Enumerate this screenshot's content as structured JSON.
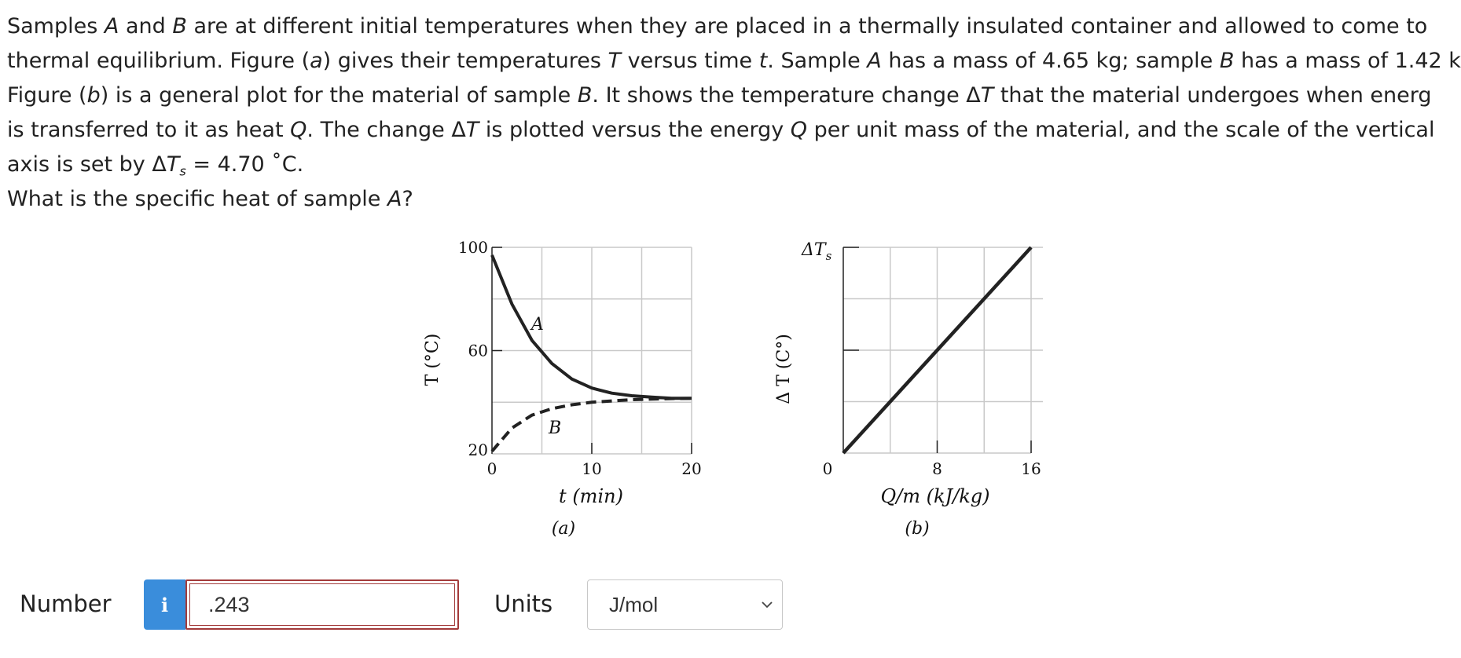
{
  "problem": {
    "line1": {
      "a": "Samples ",
      "b": "A",
      "c": " and ",
      "d": "B",
      "e": " are at different initial temperatures when they are placed in a thermally insulated container and allowed to come to"
    },
    "line2": {
      "a": "thermal equilibrium. Figure (",
      "b": "a",
      "c": ") gives their temperatures ",
      "d": "T",
      "e": " versus time ",
      "f": "t",
      "g": ". Sample ",
      "h": "A",
      "i": " has a mass of 4.65 kg; sample ",
      "j": "B",
      "k": " has a mass of 1.42 k"
    },
    "line3": {
      "a": "Figure (",
      "b": "b",
      "c": ") is a general plot for the material of sample ",
      "d": "B",
      "e": ". It shows the temperature change Δ",
      "f": "T",
      "g": " that the material undergoes when energ"
    },
    "line4": {
      "a": "is transferred to it as heat ",
      "b": "Q",
      "c": ". The change Δ",
      "d": "T",
      "e": " is plotted versus the energy ",
      "f": "Q",
      "g": " per unit mass of the material, and the scale of the vertical"
    },
    "line5": {
      "a": "axis is set by Δ",
      "b": "T",
      "c": "s",
      "d": " = 4.70 ˚C."
    },
    "question": {
      "a": "What is the specific heat of sample ",
      "b": "A",
      "c": "?"
    }
  },
  "figure_a": {
    "y_label": "T (°C)",
    "x_label": "t (min)",
    "caption": "(a)",
    "curve_a_label": "A",
    "curve_b_label": "B",
    "y_ticks": [
      "100",
      "60",
      "20"
    ],
    "x_ticks": [
      "0",
      "10",
      "20"
    ]
  },
  "figure_b": {
    "y_label": "Δ T (C°)",
    "y_top_label": "ΔT",
    "y_top_sub": "s",
    "x_label": "Q/m (kJ/kg)",
    "caption": "(b)",
    "x_ticks": [
      "0",
      "8",
      "16"
    ]
  },
  "chart_data": [
    {
      "type": "line",
      "xlabel": "t (min)",
      "ylabel": "T (°C)",
      "xlim": [
        0,
        20
      ],
      "ylim": [
        20,
        100
      ],
      "grid": true,
      "series": [
        {
          "name": "A",
          "x": [
            0,
            2,
            4,
            6,
            8,
            10,
            12,
            14,
            16,
            18,
            20
          ],
          "y": [
            97,
            78,
            64,
            55,
            49,
            45.5,
            43.5,
            42.5,
            42,
            41.5,
            41.5
          ]
        },
        {
          "name": "B",
          "x": [
            0,
            2,
            4,
            6,
            8,
            10,
            12,
            14,
            16,
            18,
            20
          ],
          "y": [
            21,
            30,
            35,
            37.5,
            39,
            40,
            40.5,
            41,
            41.2,
            41.4,
            41.5
          ]
        }
      ]
    },
    {
      "type": "line",
      "xlabel": "Q/m (kJ/kg)",
      "ylabel": "Δ T (C°)",
      "xlim": [
        0,
        16
      ],
      "ylim": [
        0,
        4.7
      ],
      "grid": true,
      "series": [
        {
          "x": [
            0,
            16
          ],
          "y": [
            0,
            4.7
          ]
        }
      ]
    }
  ],
  "answer": {
    "number_label": "Number",
    "info_icon": "i",
    "number_value": ".243",
    "units_label": "Units",
    "units_value": "J/mol",
    "units_options": [
      "J/mol"
    ]
  },
  "colors": {
    "info_button": "#3a8ddb",
    "input_border": "#a33b3b"
  }
}
